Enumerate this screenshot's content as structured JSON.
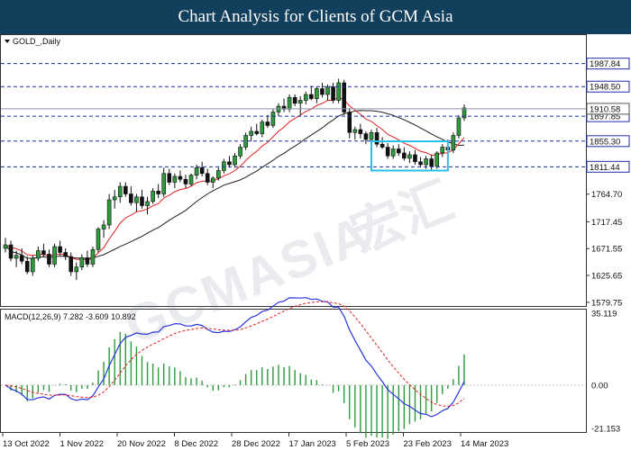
{
  "header": {
    "title": "Chart Analysis for Clients of GCM Asia"
  },
  "chart_data": [
    {
      "type": "candlestick",
      "symbol_label": "GOLD_,Daily",
      "y_range": [
        1575,
        2035
      ],
      "price_axis_ticks": [
        "1625.65",
        "1671.55",
        "1717.45",
        "1764.70",
        "1579.75"
      ],
      "levels": [
        {
          "value": 1987.84,
          "label": "1987.84"
        },
        {
          "value": 1948.5,
          "label": "1948.50"
        },
        {
          "value": 1897.85,
          "label": "1897.85"
        },
        {
          "value": 1855.3,
          "label": "1855.30"
        },
        {
          "value": 1811.44,
          "label": "1811.44"
        }
      ],
      "current_price": {
        "value": 1910.58,
        "label": "1910.58"
      },
      "series": [
        {
          "name": "fast-ma",
          "color": "#e02020"
        },
        {
          "name": "slow-ma",
          "color": "#202020"
        }
      ],
      "range_box": {
        "from": 1805,
        "to": 1855
      },
      "x_labels": [
        "13 Oct 2022",
        "1 Nov 2022",
        "20 Nov 2022",
        "8 Dec 2022",
        "28 Dec 2022",
        "17 Jan 2023",
        "5 Feb 2023",
        "23 Feb 2023",
        "14 Mar 2023"
      ],
      "candles": [
        [
          1672,
          1690,
          1665,
          1678
        ],
        [
          1678,
          1685,
          1650,
          1655
        ],
        [
          1655,
          1668,
          1640,
          1660
        ],
        [
          1660,
          1672,
          1645,
          1650
        ],
        [
          1650,
          1658,
          1628,
          1632
        ],
        [
          1632,
          1660,
          1625,
          1655
        ],
        [
          1655,
          1675,
          1650,
          1668
        ],
        [
          1668,
          1680,
          1658,
          1662
        ],
        [
          1662,
          1670,
          1640,
          1645
        ],
        [
          1645,
          1680,
          1640,
          1675
        ],
        [
          1675,
          1685,
          1660,
          1665
        ],
        [
          1665,
          1672,
          1652,
          1658
        ],
        [
          1658,
          1665,
          1625,
          1632
        ],
        [
          1632,
          1648,
          1618,
          1640
        ],
        [
          1640,
          1662,
          1635,
          1656
        ],
        [
          1656,
          1668,
          1640,
          1645
        ],
        [
          1645,
          1675,
          1640,
          1670
        ],
        [
          1670,
          1708,
          1665,
          1705
        ],
        [
          1705,
          1720,
          1690,
          1712
        ],
        [
          1712,
          1765,
          1705,
          1755
        ],
        [
          1755,
          1772,
          1740,
          1760
        ],
        [
          1760,
          1785,
          1750,
          1778
        ],
        [
          1778,
          1785,
          1760,
          1765
        ],
        [
          1765,
          1778,
          1745,
          1750
        ],
        [
          1750,
          1765,
          1735,
          1760
        ],
        [
          1760,
          1772,
          1740,
          1745
        ],
        [
          1745,
          1760,
          1730,
          1752
        ],
        [
          1752,
          1775,
          1748,
          1770
        ],
        [
          1770,
          1782,
          1758,
          1765
        ],
        [
          1765,
          1810,
          1760,
          1800
        ],
        [
          1800,
          1808,
          1780,
          1785
        ],
        [
          1785,
          1800,
          1775,
          1795
        ],
        [
          1795,
          1805,
          1785,
          1790
        ],
        [
          1790,
          1798,
          1775,
          1782
        ],
        [
          1782,
          1800,
          1778,
          1797
        ],
        [
          1797,
          1815,
          1790,
          1810
        ],
        [
          1810,
          1820,
          1795,
          1800
        ],
        [
          1800,
          1808,
          1780,
          1785
        ],
        [
          1785,
          1795,
          1775,
          1792
        ],
        [
          1792,
          1810,
          1788,
          1805
        ],
        [
          1805,
          1825,
          1800,
          1820
        ],
        [
          1820,
          1830,
          1810,
          1815
        ],
        [
          1815,
          1835,
          1810,
          1830
        ],
        [
          1830,
          1850,
          1825,
          1845
        ],
        [
          1845,
          1870,
          1840,
          1865
        ],
        [
          1865,
          1880,
          1855,
          1872
        ],
        [
          1872,
          1885,
          1865,
          1868
        ],
        [
          1868,
          1892,
          1862,
          1888
        ],
        [
          1888,
          1900,
          1878,
          1882
        ],
        [
          1882,
          1910,
          1878,
          1905
        ],
        [
          1905,
          1920,
          1898,
          1915
        ],
        [
          1915,
          1928,
          1905,
          1910
        ],
        [
          1910,
          1935,
          1905,
          1930
        ],
        [
          1930,
          1935,
          1915,
          1920
        ],
        [
          1920,
          1932,
          1900,
          1925
        ],
        [
          1925,
          1940,
          1918,
          1935
        ],
        [
          1935,
          1950,
          1925,
          1928
        ],
        [
          1928,
          1948,
          1920,
          1945
        ],
        [
          1945,
          1955,
          1930,
          1935
        ],
        [
          1935,
          1952,
          1925,
          1948
        ],
        [
          1948,
          1955,
          1920,
          1925
        ],
        [
          1925,
          1962,
          1920,
          1955
        ],
        [
          1955,
          1960,
          1900,
          1905
        ],
        [
          1905,
          1912,
          1860,
          1870
        ],
        [
          1870,
          1880,
          1858,
          1875
        ],
        [
          1875,
          1885,
          1860,
          1868
        ],
        [
          1868,
          1872,
          1850,
          1858
        ],
        [
          1858,
          1875,
          1850,
          1870
        ],
        [
          1870,
          1878,
          1845,
          1850
        ],
        [
          1850,
          1862,
          1842,
          1845
        ],
        [
          1845,
          1852,
          1825,
          1830
        ],
        [
          1830,
          1848,
          1825,
          1842
        ],
        [
          1842,
          1850,
          1830,
          1835
        ],
        [
          1835,
          1845,
          1822,
          1826
        ],
        [
          1826,
          1838,
          1818,
          1832
        ],
        [
          1832,
          1840,
          1815,
          1820
        ],
        [
          1820,
          1828,
          1810,
          1815
        ],
        [
          1815,
          1830,
          1808,
          1825
        ],
        [
          1825,
          1832,
          1805,
          1812
        ],
        [
          1812,
          1838,
          1808,
          1835
        ],
        [
          1835,
          1850,
          1828,
          1845
        ],
        [
          1845,
          1858,
          1835,
          1840
        ],
        [
          1840,
          1870,
          1835,
          1865
        ],
        [
          1865,
          1900,
          1860,
          1895
        ],
        [
          1895,
          1918,
          1890,
          1912
        ]
      ]
    },
    {
      "type": "macd",
      "label": "MACD(12,26,9) 7.282 -3.609 10.892",
      "y_range": [
        -22,
        36
      ],
      "axis_ticks": [
        "35.119",
        "0.00",
        "-21.153"
      ]
    }
  ]
}
